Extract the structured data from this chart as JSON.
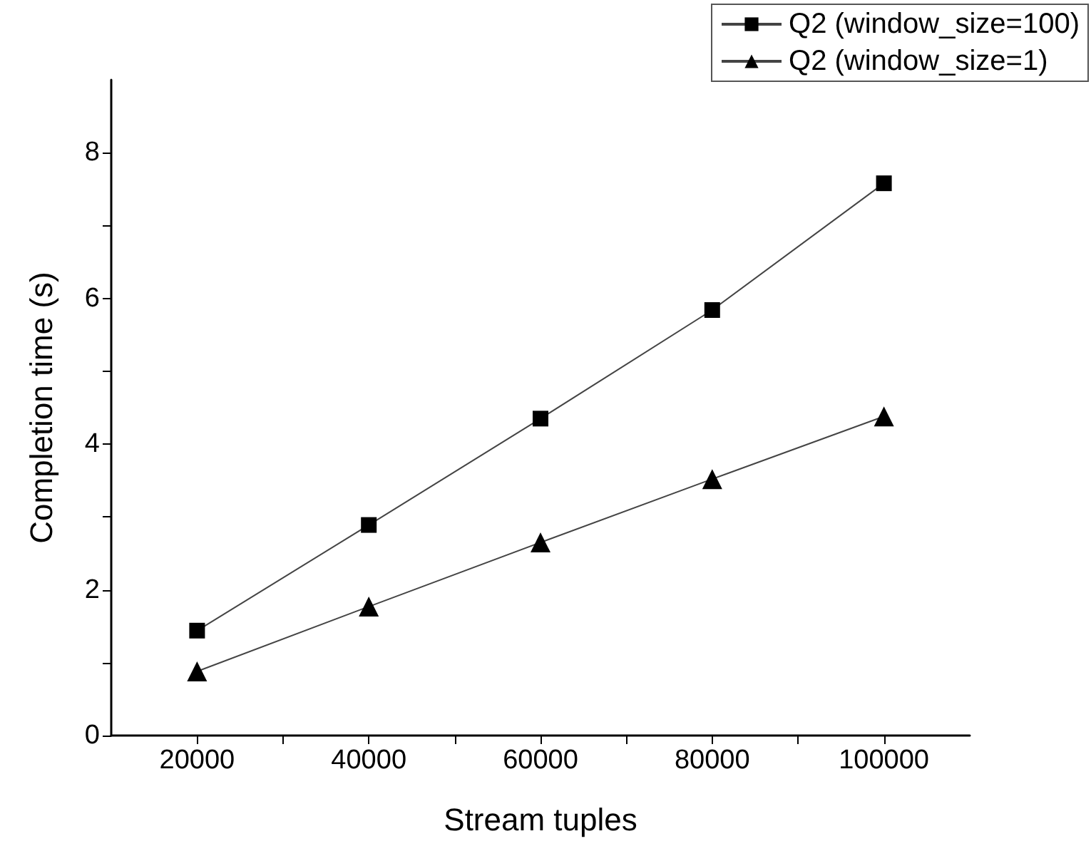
{
  "chart_data": {
    "type": "line",
    "xlabel": "Stream tuples",
    "ylabel": "Completion time (s)",
    "x": [
      20000,
      40000,
      60000,
      80000,
      100000
    ],
    "series": [
      {
        "name": "Q2 (window_size=100)",
        "color": "#000000",
        "marker": "square",
        "values": [
          1.44,
          2.89,
          4.35,
          5.84,
          7.58
        ]
      },
      {
        "name": "Q2 (window_size=1)",
        "color": "#000000",
        "marker": "triangle",
        "values": [
          0.88,
          1.77,
          2.65,
          3.52,
          4.38
        ]
      }
    ],
    "xlim": [
      10000,
      110000
    ],
    "xticks": [
      20000,
      {
        "value": 30000,
        "label": null
      },
      40000,
      {
        "value": 50000,
        "label": null
      },
      60000,
      {
        "value": 70000,
        "label": null
      },
      80000,
      {
        "value": 90000,
        "label": null
      },
      100000
    ],
    "ylim": [
      0,
      9
    ],
    "yticks": [
      0,
      {
        "value": 1,
        "label": null
      },
      2,
      {
        "value": 3,
        "label": null
      },
      4,
      {
        "value": 5,
        "label": null
      },
      6,
      {
        "value": 7,
        "label": null
      },
      8
    ],
    "grid": false,
    "legend": "top right",
    "line_style": "solid"
  }
}
